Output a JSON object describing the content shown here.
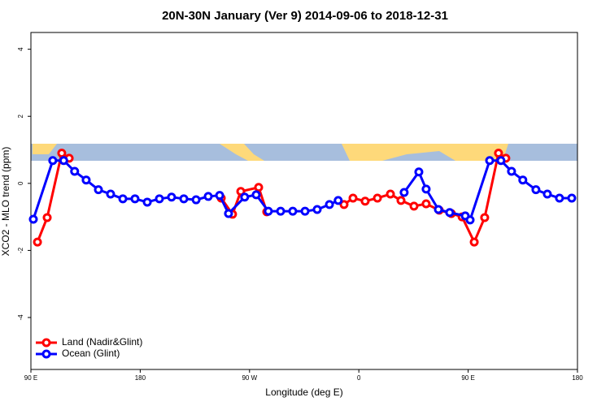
{
  "chart_data": {
    "type": "line",
    "title": "20N-30N January (Ver 9)   2014-09-06 to 2018-12-31",
    "x_label": "Longitude (deg E)",
    "y_label": "XCO2 - MLO trend (ppm)",
    "xlim": [
      90,
      540
    ],
    "ylim": [
      -5.55,
      4.5
    ],
    "xticks": [
      {
        "value": 90,
        "label": "90 E"
      },
      180,
      {
        "value": 270,
        "label": "90 W"
      },
      {
        "value": 360,
        "label": "0"
      },
      {
        "value": 450,
        "label": "90 E"
      },
      {
        "value": 540,
        "label": "180"
      }
    ],
    "yticks": [
      -4,
      -2,
      0,
      2,
      4
    ],
    "legend": "bottom-left",
    "series": [
      {
        "name": "Land (Nadir&Glint)",
        "color": "#ff0000",
        "x": [
          95.4,
          103.4,
          115.4,
          121.5,
          null,
          246.7,
          256,
          262.8,
          277.5,
          284.2,
          null,
          347.8,
          355.2,
          365.2,
          375.3,
          386,
          394.7,
          405.4,
          415.4,
          426.2,
          436.2,
          445,
          455,
          463.6,
          475,
          481
        ],
        "values": [
          -1.75,
          -1.02,
          0.9,
          0.75,
          null,
          -0.44,
          -0.92,
          -0.24,
          -0.12,
          -0.85,
          null,
          -0.63,
          -0.44,
          -0.53,
          -0.44,
          -0.32,
          -0.51,
          -0.68,
          -0.61,
          -0.8,
          -0.9,
          -1.0,
          -1.75,
          -1.02,
          0.9,
          0.75
        ]
      },
      {
        "name": "Ocean (Glint)",
        "color": "#0000ff",
        "x": [
          92,
          108,
          117,
          126,
          135.5,
          145.6,
          155.6,
          165.7,
          175.7,
          185.8,
          195.8,
          205.8,
          215.9,
          226,
          236,
          245.4,
          252.7,
          266,
          275.5,
          285.5,
          295.6,
          305.6,
          315.7,
          325.7,
          335.8,
          343,
          null,
          397.3,
          409.4,
          415.4,
          425.5,
          434.8,
          447.6,
          451.6,
          467.7,
          477,
          485.7,
          495,
          505.8,
          515.2,
          525.2,
          535.3
        ],
        "values": [
          -1.07,
          0.68,
          0.68,
          0.36,
          0.1,
          -0.19,
          -0.32,
          -0.46,
          -0.46,
          -0.56,
          -0.46,
          -0.41,
          -0.46,
          -0.49,
          -0.39,
          -0.36,
          -0.9,
          -0.41,
          -0.34,
          -0.83,
          -0.83,
          -0.83,
          -0.83,
          -0.78,
          -0.63,
          -0.51,
          null,
          -0.27,
          0.34,
          -0.17,
          -0.78,
          -0.87,
          -0.97,
          -1.09,
          0.68,
          0.68,
          0.36,
          0.1,
          -0.19,
          -0.32,
          -0.44,
          -0.44
        ]
      }
    ]
  }
}
